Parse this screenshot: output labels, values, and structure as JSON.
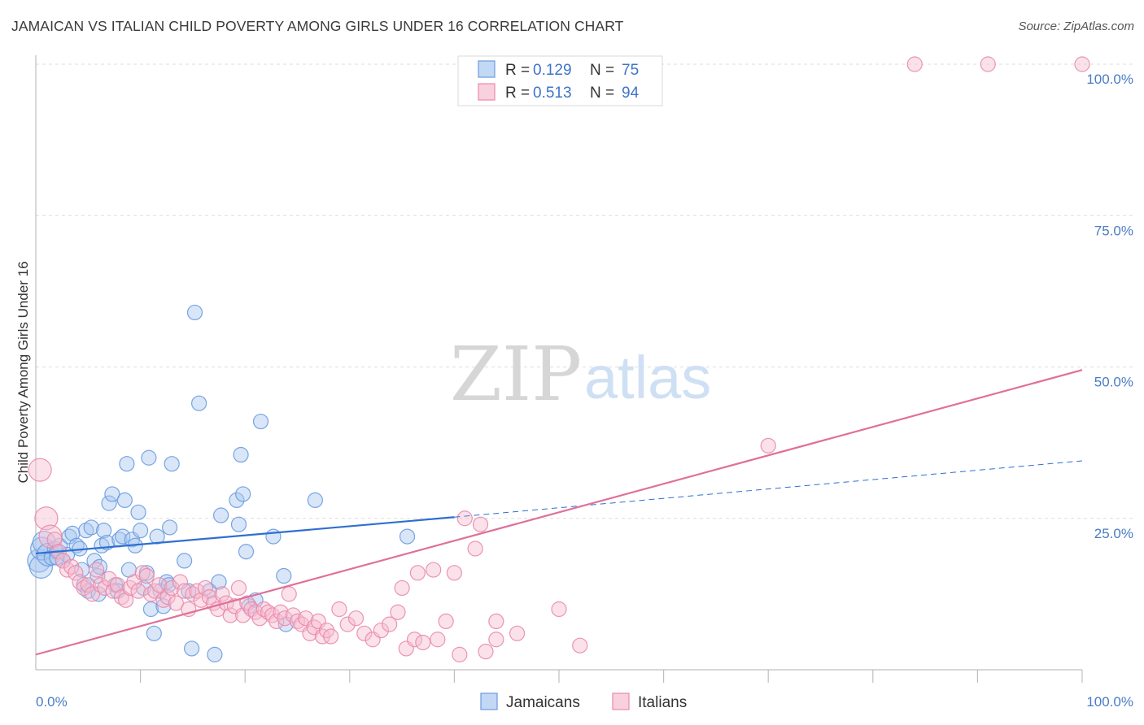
{
  "title": "JAMAICAN VS ITALIAN CHILD POVERTY AMONG GIRLS UNDER 16 CORRELATION CHART",
  "source": "Source: ZipAtlas.com",
  "watermark": {
    "zip": "ZIP",
    "atlas": "atlas"
  },
  "colors": {
    "jamaicans": "#6a9be0",
    "jamaicans_fill": "#a9c8f0",
    "italians": "#e98aab",
    "italians_fill": "#f6bcd0",
    "blue_line": "#2f6fd0",
    "pink_line": "#e0709a",
    "accent_text": "#3d74c9"
  },
  "legend": {
    "rows": [
      {
        "r_label": "R = ",
        "r_value": "0.129",
        "n_label": "N = ",
        "n_value": "75"
      },
      {
        "r_label": "R = ",
        "r_value": "0.513",
        "n_label": "N = ",
        "n_value": "94"
      }
    ],
    "bottom": [
      "Jamaicans",
      "Italians"
    ]
  },
  "chart_data": {
    "type": "scatter",
    "title": "JAMAICAN VS ITALIAN CHILD POVERTY AMONG GIRLS UNDER 16 CORRELATION CHART",
    "xlabel": "",
    "ylabel": "Child Poverty Among Girls Under 16",
    "xlim": [
      0,
      100
    ],
    "ylim": [
      0,
      100
    ],
    "x_ticks": [
      "0.0%",
      "100.0%"
    ],
    "y_ticks": [
      {
        "value": 25,
        "label": "25.0%"
      },
      {
        "value": 50,
        "label": "50.0%"
      },
      {
        "value": 75,
        "label": "75.0%"
      },
      {
        "value": 100,
        "label": "100.0%"
      }
    ],
    "grid": true,
    "legend_position": "top-center",
    "series": [
      {
        "name": "Jamaicans",
        "r": 0.129,
        "n": 75,
        "trend": {
          "x0": 0,
          "y0": 19.2,
          "x1": 40,
          "y1": 25.2,
          "dashed_to_x": 100,
          "dashed_to_y": 34.5
        },
        "points": [
          [
            0.3,
            18.0
          ],
          [
            0.5,
            17.0
          ],
          [
            0.6,
            20.0
          ],
          [
            0.8,
            21.0
          ],
          [
            1.2,
            19.0
          ],
          [
            1.5,
            18.5
          ],
          [
            1.8,
            20.0
          ],
          [
            2.0,
            19.5
          ],
          [
            2.3,
            20.5
          ],
          [
            2.6,
            18.0
          ],
          [
            3.0,
            19.0
          ],
          [
            3.2,
            22.0
          ],
          [
            3.5,
            22.5
          ],
          [
            3.9,
            20.5
          ],
          [
            4.2,
            20.0
          ],
          [
            4.4,
            16.5
          ],
          [
            4.6,
            14.0
          ],
          [
            4.8,
            23.0
          ],
          [
            5.0,
            13.0
          ],
          [
            5.3,
            23.5
          ],
          [
            5.6,
            18.0
          ],
          [
            5.9,
            15.5
          ],
          [
            6.1,
            17.0
          ],
          [
            6.3,
            20.5
          ],
          [
            6.5,
            23.0
          ],
          [
            6.8,
            21.0
          ],
          [
            7.0,
            27.5
          ],
          [
            7.3,
            29.0
          ],
          [
            7.6,
            14.0
          ],
          [
            7.8,
            13.0
          ],
          [
            8.0,
            21.5
          ],
          [
            8.3,
            22.0
          ],
          [
            8.5,
            28.0
          ],
          [
            8.7,
            34.0
          ],
          [
            8.9,
            16.5
          ],
          [
            9.2,
            21.5
          ],
          [
            9.5,
            20.5
          ],
          [
            9.8,
            26.0
          ],
          [
            10.0,
            23.0
          ],
          [
            10.3,
            13.5
          ],
          [
            10.6,
            16.0
          ],
          [
            10.8,
            35.0
          ],
          [
            11.0,
            10.0
          ],
          [
            11.3,
            6.0
          ],
          [
            11.6,
            22.0
          ],
          [
            11.9,
            13.0
          ],
          [
            12.2,
            10.5
          ],
          [
            12.5,
            14.5
          ],
          [
            12.8,
            23.5
          ],
          [
            13.0,
            34.0
          ],
          [
            14.2,
            18.0
          ],
          [
            14.6,
            13.0
          ],
          [
            14.9,
            3.5
          ],
          [
            15.2,
            59.0
          ],
          [
            15.6,
            44.0
          ],
          [
            16.6,
            13.0
          ],
          [
            17.1,
            2.5
          ],
          [
            17.5,
            14.5
          ],
          [
            17.7,
            25.5
          ],
          [
            19.2,
            28.0
          ],
          [
            19.4,
            24.0
          ],
          [
            19.6,
            35.5
          ],
          [
            19.8,
            29.0
          ],
          [
            20.1,
            19.5
          ],
          [
            20.4,
            10.5
          ],
          [
            21.0,
            11.5
          ],
          [
            21.5,
            41.0
          ],
          [
            22.7,
            22.0
          ],
          [
            23.7,
            15.5
          ],
          [
            23.9,
            7.5
          ],
          [
            26.7,
            28.0
          ],
          [
            35.5,
            22.0
          ],
          [
            12.7,
            14.0
          ],
          [
            6.0,
            12.5
          ],
          [
            2.0,
            18.5
          ]
        ]
      },
      {
        "name": "Italians",
        "r": 0.513,
        "n": 94,
        "trend": {
          "x0": 0,
          "y0": 2.5,
          "x1": 100,
          "y1": 49.5
        },
        "points": [
          [
            0.4,
            33.0
          ],
          [
            1.0,
            25.0
          ],
          [
            1.4,
            22.0
          ],
          [
            1.8,
            21.5
          ],
          [
            2.2,
            19.5
          ],
          [
            2.6,
            18.0
          ],
          [
            3.0,
            16.5
          ],
          [
            3.4,
            17.0
          ],
          [
            3.8,
            16.0
          ],
          [
            4.2,
            14.5
          ],
          [
            4.6,
            13.5
          ],
          [
            5.0,
            14.0
          ],
          [
            5.4,
            12.5
          ],
          [
            5.8,
            16.5
          ],
          [
            6.2,
            14.0
          ],
          [
            6.6,
            13.5
          ],
          [
            7.0,
            15.0
          ],
          [
            7.4,
            13.0
          ],
          [
            7.8,
            14.0
          ],
          [
            8.2,
            12.0
          ],
          [
            8.6,
            11.5
          ],
          [
            9.0,
            13.5
          ],
          [
            9.4,
            14.5
          ],
          [
            9.8,
            13.0
          ],
          [
            10.2,
            16.0
          ],
          [
            10.6,
            15.5
          ],
          [
            11.0,
            12.5
          ],
          [
            11.4,
            13.0
          ],
          [
            11.8,
            14.0
          ],
          [
            12.2,
            11.5
          ],
          [
            12.6,
            12.0
          ],
          [
            13.0,
            13.5
          ],
          [
            13.4,
            11.0
          ],
          [
            13.8,
            14.5
          ],
          [
            14.2,
            13.0
          ],
          [
            14.6,
            10.0
          ],
          [
            15.0,
            12.5
          ],
          [
            15.4,
            13.0
          ],
          [
            15.8,
            11.5
          ],
          [
            16.2,
            13.5
          ],
          [
            16.6,
            12.0
          ],
          [
            17.0,
            11.0
          ],
          [
            17.4,
            10.0
          ],
          [
            17.8,
            12.5
          ],
          [
            18.2,
            11.0
          ],
          [
            18.6,
            9.0
          ],
          [
            19.0,
            10.5
          ],
          [
            19.4,
            13.5
          ],
          [
            19.8,
            9.0
          ],
          [
            20.2,
            11.0
          ],
          [
            20.6,
            10.0
          ],
          [
            21.0,
            9.5
          ],
          [
            21.4,
            8.5
          ],
          [
            21.8,
            10.0
          ],
          [
            22.2,
            9.5
          ],
          [
            22.6,
            9.0
          ],
          [
            23.0,
            8.0
          ],
          [
            23.4,
            9.5
          ],
          [
            23.8,
            8.5
          ],
          [
            24.2,
            12.5
          ],
          [
            24.6,
            9.0
          ],
          [
            25.0,
            8.0
          ],
          [
            25.4,
            7.5
          ],
          [
            25.8,
            8.5
          ],
          [
            26.2,
            6.0
          ],
          [
            26.6,
            7.0
          ],
          [
            27.0,
            8.0
          ],
          [
            27.4,
            5.5
          ],
          [
            27.8,
            6.5
          ],
          [
            28.2,
            5.5
          ],
          [
            29.0,
            10.0
          ],
          [
            29.8,
            7.5
          ],
          [
            30.6,
            8.5
          ],
          [
            31.4,
            6.0
          ],
          [
            32.2,
            5.0
          ],
          [
            33.0,
            6.5
          ],
          [
            33.8,
            7.5
          ],
          [
            34.6,
            9.5
          ],
          [
            35.0,
            13.5
          ],
          [
            35.4,
            3.5
          ],
          [
            36.2,
            5.0
          ],
          [
            37.0,
            4.5
          ],
          [
            38.0,
            16.5
          ],
          [
            38.4,
            5.0
          ],
          [
            39.2,
            8.0
          ],
          [
            40.0,
            16.0
          ],
          [
            41.0,
            25.0
          ],
          [
            42.0,
            20.0
          ],
          [
            43.0,
            3.0
          ],
          [
            44.0,
            5.0
          ],
          [
            46.0,
            6.0
          ],
          [
            50.0,
            10.0
          ],
          [
            70.0,
            37.0
          ],
          [
            84.0,
            100.0
          ]
        ]
      }
    ],
    "extra_italian_points": [
      [
        91.0,
        100.0
      ],
      [
        100.0,
        100.0
      ],
      [
        42.5,
        24.0
      ],
      [
        40.5,
        2.5
      ],
      [
        36.5,
        16.0
      ],
      [
        44.0,
        8.0
      ],
      [
        52.0,
        4.0
      ]
    ]
  }
}
